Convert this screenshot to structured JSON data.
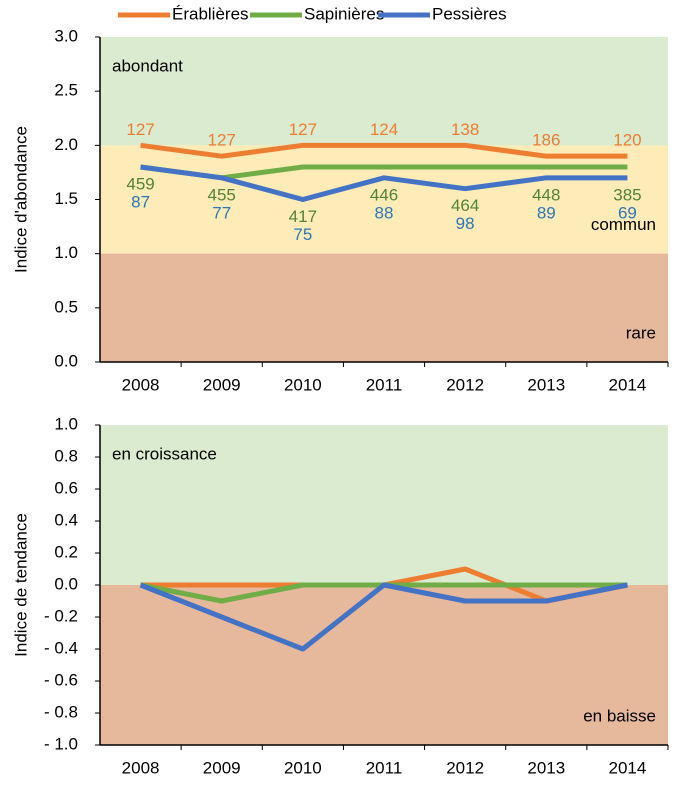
{
  "chart_data": [
    {
      "type": "line",
      "y_label": "Indice d'abondance",
      "categories": [
        "2008",
        "2009",
        "2010",
        "2011",
        "2012",
        "2013",
        "2014"
      ],
      "ylim": [
        0,
        3
      ],
      "yticks": [
        {
          "value": 0,
          "label": "0.0"
        },
        {
          "value": 0.5,
          "label": "0.5"
        },
        {
          "value": 1,
          "label": "1.0"
        },
        {
          "value": 1.5,
          "label": "1.5"
        },
        {
          "value": 2,
          "label": "2.0"
        },
        {
          "value": 2.5,
          "label": "2.5"
        },
        {
          "value": 3,
          "label": "3.0"
        }
      ],
      "zones": [
        {
          "label": "abondant",
          "from": 2,
          "to": 3,
          "color": "#dbebd0",
          "corner": "top-left"
        },
        {
          "label": "commun",
          "from": 1,
          "to": 2,
          "color": "#fdebb8",
          "corner": "bottom-right"
        },
        {
          "label": "rare",
          "from": 0,
          "to": 1,
          "color": "#e6b89c",
          "corner": "bottom-right"
        }
      ],
      "series": [
        {
          "name": "Érablières",
          "color": "#ed7d31",
          "values": [
            2.0,
            1.9,
            2.0,
            2.0,
            2.0,
            1.9,
            1.9
          ],
          "counts": [
            127,
            127,
            127,
            124,
            138,
            186,
            120
          ]
        },
        {
          "name": "Sapinières",
          "color": "#70ad47",
          "values": [
            1.8,
            1.7,
            1.8,
            1.8,
            1.8,
            1.8,
            1.8
          ],
          "counts": [
            459,
            455,
            417,
            446,
            464,
            448,
            385
          ]
        },
        {
          "name": "Pessières",
          "color": "#4472c4",
          "values": [
            1.8,
            1.7,
            1.5,
            1.7,
            1.6,
            1.7,
            1.7
          ],
          "counts": [
            87,
            77,
            75,
            88,
            98,
            89,
            69
          ]
        }
      ]
    },
    {
      "type": "line",
      "y_label": "Indice de tendance",
      "categories": [
        "2008",
        "2009",
        "2010",
        "2011",
        "2012",
        "2013",
        "2014"
      ],
      "ylim": [
        -1,
        1
      ],
      "yticks": [
        {
          "value": 1,
          "label": "1.0"
        },
        {
          "value": 0.8,
          "label": "0.8"
        },
        {
          "value": 0.6,
          "label": "0.6"
        },
        {
          "value": 0.4,
          "label": "0.4"
        },
        {
          "value": 0.2,
          "label": "0.2"
        },
        {
          "value": 0,
          "label": "0.0"
        },
        {
          "value": -0.2,
          "label": "- 0.2"
        },
        {
          "value": -0.4,
          "label": "- 0.4"
        },
        {
          "value": -0.6,
          "label": "- 0.6"
        },
        {
          "value": -0.8,
          "label": "- 0.8"
        },
        {
          "value": -1,
          "label": "- 1.0"
        }
      ],
      "zones": [
        {
          "label": "en croissance",
          "from": 0,
          "to": 1,
          "color": "#dbebd0",
          "corner": "top-left"
        },
        {
          "label": "en baisse",
          "from": -1,
          "to": 0,
          "color": "#e6b89c",
          "corner": "bottom-right"
        }
      ],
      "series": [
        {
          "name": "Érablières",
          "color": "#ed7d31",
          "values": [
            0,
            0,
            0,
            0,
            0.1,
            -0.1,
            0
          ]
        },
        {
          "name": "Sapinières",
          "color": "#70ad47",
          "values": [
            0,
            -0.1,
            0,
            0,
            0,
            0,
            0
          ]
        },
        {
          "name": "Pessières",
          "color": "#4472c4",
          "values": [
            0,
            -0.2,
            -0.4,
            0,
            -0.1,
            -0.1,
            0
          ]
        }
      ]
    }
  ]
}
